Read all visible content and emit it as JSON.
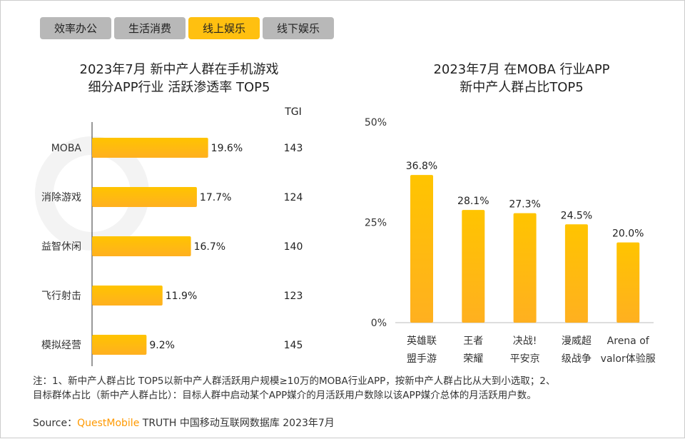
{
  "tabs": [
    {
      "label": "效率办公",
      "active": false
    },
    {
      "label": "生活消费",
      "active": false
    },
    {
      "label": "线上娱乐",
      "active": true
    },
    {
      "label": "线下娱乐",
      "active": false
    }
  ],
  "colors": {
    "bar": "#ffc010",
    "tab_active": "#ffc010",
    "tab": "#b8b8b8",
    "brand": "#ff9900"
  },
  "watermark": "QUESTMOBILE",
  "chart_data": [
    {
      "type": "bar",
      "orientation": "horizontal",
      "title_line1": "2023年7月 新中产人群在手机游戏",
      "title_line2": "细分APP行业 活跃渗透率 TOP5",
      "categories": [
        "MOBA",
        "消除游戏",
        "益智休闲",
        "飞行射击",
        "模拟经营"
      ],
      "values": [
        19.6,
        17.7,
        16.7,
        11.9,
        9.2
      ],
      "data_labels": [
        "19.6%",
        "17.7%",
        "16.7%",
        "11.9%",
        "9.2%"
      ],
      "tgi_header": "TGI",
      "tgi": [
        "143",
        "124",
        "140",
        "123",
        "145"
      ],
      "xlim": [
        0,
        22
      ]
    },
    {
      "type": "bar",
      "title_line1": "2023年7月 在MOBA 行业APP",
      "title_line2": "新中产人群占比TOP5",
      "categories": [
        [
          "英雄联",
          "盟手游"
        ],
        [
          "王者",
          "荣耀"
        ],
        [
          "决战!",
          "平安京"
        ],
        [
          "漫威超",
          "级战争"
        ],
        [
          "Arena of",
          "valor体验服"
        ]
      ],
      "values": [
        36.8,
        28.1,
        27.3,
        24.5,
        20.0
      ],
      "data_labels": [
        "36.8%",
        "28.1%",
        "27.3%",
        "24.5%",
        "20.0%"
      ],
      "yticks": [
        "0%",
        "25%",
        "50%"
      ],
      "ylim": [
        0,
        50
      ]
    }
  ],
  "note_line1": "注：1、新中产人群占比 TOP5以新中产人群活跃用户规模≥10万的MOBA行业APP，按新中产人群占比从大到小选取；2、",
  "note_line2": "目标群体占比（新中产人群占比）：目标人群中启动某个APP媒介的月活跃用户数除以该APP媒介总体的月活跃用户数。",
  "source": {
    "prefix": "Source：",
    "brand": "QuestMobile",
    "rest": " TRUTH 中国移动互联网数据库 2023年7月"
  }
}
